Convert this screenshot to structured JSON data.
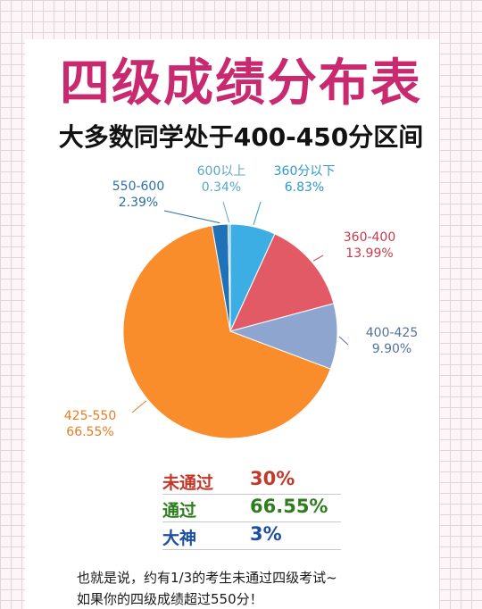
{
  "title": "四级成绩分布表",
  "subtitle": "大多数同学处于400-450分区间",
  "colors": {
    "title": "#c9296f",
    "pass": "#2e7d1e",
    "fail": "#c0392b",
    "top": "#1d4fa0"
  },
  "chart_data": {
    "type": "pie",
    "slices": [
      {
        "label": "360分以下",
        "percent_label": "6.83%",
        "value": 6.83,
        "color": "#3daee3",
        "label_color": "#2f97cf"
      },
      {
        "label": "360-400",
        "percent_label": "13.99%",
        "value": 13.99,
        "color": "#e25a66",
        "label_color": "#c83a4c"
      },
      {
        "label": "400-425",
        "percent_label": "9.90%",
        "value": 9.9,
        "color": "#8ea6cf",
        "label_color": "#56729c"
      },
      {
        "label": "425-550",
        "percent_label": "66.55%",
        "value": 66.55,
        "color": "#f98c2b",
        "label_color": "#e87c22"
      },
      {
        "label": "550-600",
        "percent_label": "2.39%",
        "value": 2.39,
        "color": "#1f72b8",
        "label_color": "#2a6fa5"
      },
      {
        "label": "600以上",
        "percent_label": "0.34%",
        "value": 0.34,
        "color": "#86c9e6",
        "label_color": "#5aa8c9"
      }
    ]
  },
  "summary": [
    {
      "key": "未通过",
      "value": "30%",
      "color": "#c0392b"
    },
    {
      "key": "通过",
      "value": "66.55%",
      "color": "#2e7d1e"
    },
    {
      "key": "大神",
      "value": "3%",
      "color": "#1d4fa0"
    }
  ],
  "footer": [
    "也就是说，约有1/3的考生未通过四级考试~",
    "如果你的四级成绩超过550分！"
  ]
}
